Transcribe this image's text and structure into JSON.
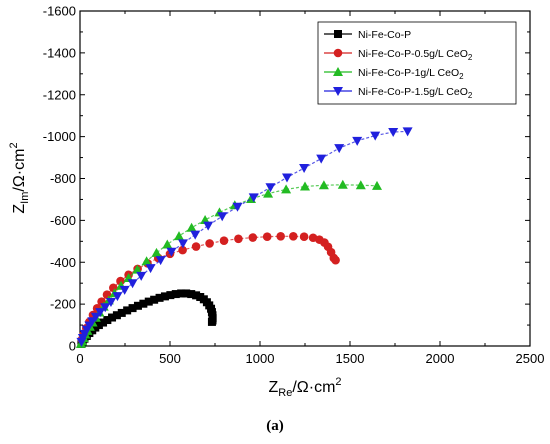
{
  "chart_data": {
    "type": "scatter",
    "xlabel": {
      "main": "Z",
      "sub": "Re",
      "unit": "/Ω·cm",
      "sup": "2"
    },
    "ylabel": {
      "main": "Z",
      "sub": "Im",
      "unit": "/Ω·cm",
      "sup": "2"
    },
    "xlim": [
      0,
      2500
    ],
    "ylim": [
      0,
      -1600
    ],
    "xticks": [
      0,
      500,
      1000,
      1500,
      2000,
      2500
    ],
    "xtick_labels": [
      "0",
      "500",
      "1000",
      "1500",
      "2000",
      "2500"
    ],
    "yticks": [
      0,
      -200,
      -400,
      -600,
      -800,
      -1000,
      -1200,
      -1400,
      -1600
    ],
    "ytick_labels": [
      "0",
      "-200",
      "-400",
      "-600",
      "-800",
      "-1000",
      "-1200",
      "-1400",
      "-1600"
    ],
    "legend_position": "top-right",
    "series": [
      {
        "name": "Ni-Fe-Co-P",
        "marker": "square",
        "color": "#000000",
        "x": [
          8,
          15,
          25,
          38,
          52,
          68,
          85,
          105,
          128,
          152,
          178,
          205,
          232,
          262,
          292,
          322,
          352,
          382,
          412,
          442,
          472,
          502,
          532,
          562,
          590,
          618,
          645,
          668,
          688,
          705,
          718,
          728,
          733,
          736,
          737,
          736,
          733
        ],
        "y": [
          -10,
          -22,
          -35,
          -48,
          -62,
          -75,
          -88,
          -100,
          -112,
          -124,
          -136,
          -147,
          -158,
          -170,
          -181,
          -192,
          -202,
          -212,
          -221,
          -230,
          -237,
          -243,
          -248,
          -251,
          -251,
          -248,
          -242,
          -234,
          -223,
          -209,
          -194,
          -178,
          -162,
          -147,
          -133,
          -122,
          -115
        ]
      },
      {
        "name": "Ni-Fe-Co-P-0.5g/L CeO2",
        "marker": "circle",
        "color": "#d42020",
        "x": [
          10,
          20,
          35,
          52,
          72,
          95,
          120,
          150,
          185,
          225,
          270,
          320,
          375,
          435,
          500,
          570,
          645,
          720,
          800,
          880,
          960,
          1040,
          1115,
          1185,
          1245,
          1295,
          1330,
          1358,
          1378,
          1395,
          1410,
          1420
        ],
        "y": [
          -30,
          -55,
          -85,
          -115,
          -148,
          -180,
          -212,
          -245,
          -278,
          -310,
          -340,
          -368,
          -395,
          -420,
          -440,
          -458,
          -475,
          -490,
          -503,
          -512,
          -518,
          -522,
          -524,
          -524,
          -522,
          -517,
          -508,
          -494,
          -474,
          -448,
          -420,
          -410
        ]
      },
      {
        "name": "Ni-Fe-Co-P-1g/L CeO2",
        "marker": "triangle-up",
        "color": "#22bb22",
        "x": [
          5,
          12,
          20,
          30,
          42,
          55,
          70,
          88,
          108,
          132,
          160,
          192,
          228,
          270,
          318,
          370,
          425,
          485,
          550,
          620,
          695,
          775,
          860,
          950,
          1045,
          1145,
          1250,
          1355,
          1460,
          1560,
          1650
        ],
        "y": [
          -10,
          -22,
          -38,
          -55,
          -72,
          -92,
          -112,
          -135,
          -160,
          -188,
          -218,
          -252,
          -288,
          -325,
          -365,
          -405,
          -445,
          -485,
          -525,
          -565,
          -602,
          -638,
          -672,
          -702,
          -728,
          -748,
          -762,
          -768,
          -770,
          -768,
          -765
        ]
      },
      {
        "name": "Ni-Fe-Co-P-1.5g/L CeO2",
        "marker": "triangle-down",
        "color": "#2020dd",
        "x": [
          8,
          16,
          26,
          38,
          52,
          68,
          88,
          112,
          140,
          172,
          208,
          248,
          292,
          340,
          392,
          448,
          508,
          572,
          640,
          712,
          790,
          875,
          965,
          1058,
          1150,
          1245,
          1340,
          1440,
          1540,
          1640,
          1740,
          1820
        ],
        "y": [
          -20,
          -38,
          -58,
          -78,
          -98,
          -118,
          -140,
          -162,
          -185,
          -210,
          -238,
          -268,
          -300,
          -335,
          -372,
          -410,
          -450,
          -490,
          -532,
          -575,
          -620,
          -665,
          -710,
          -758,
          -805,
          -850,
          -895,
          -945,
          -980,
          -1005,
          -1022,
          -1025
        ]
      }
    ]
  },
  "caption": "(a)"
}
